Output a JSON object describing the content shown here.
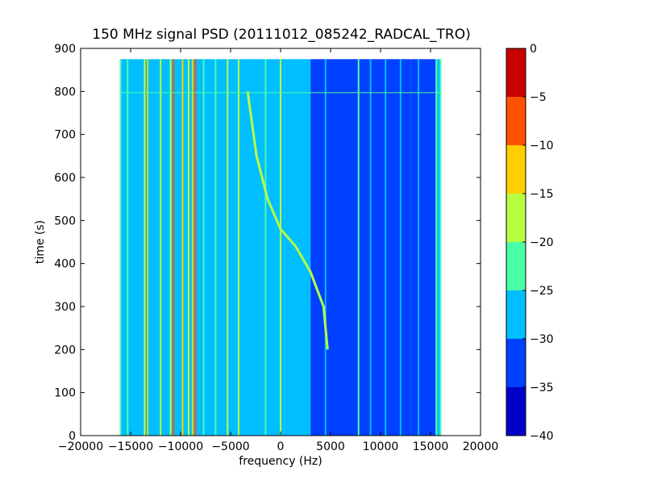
{
  "chart_data": {
    "type": "heatmap",
    "title": "150 MHz signal PSD (20111012_085242_RADCAL_TRO)",
    "xlabel": "frequency (Hz)",
    "ylabel": "time (s)",
    "xlim": [
      -20000,
      20000
    ],
    "ylim": [
      0,
      900
    ],
    "xticks": [
      -20000,
      -15000,
      -10000,
      -5000,
      0,
      5000,
      10000,
      15000,
      20000
    ],
    "xtick_labels": [
      "−20000",
      "−15000",
      "−10000",
      "−5000",
      "0",
      "5000",
      "10000",
      "15000",
      "20000"
    ],
    "yticks": [
      0,
      100,
      200,
      300,
      400,
      500,
      600,
      700,
      800,
      900
    ],
    "ytick_labels": [
      "0",
      "100",
      "200",
      "300",
      "400",
      "500",
      "600",
      "700",
      "800",
      "900"
    ],
    "data_extent": {
      "x": [
        -16000,
        16000
      ],
      "y": [
        0,
        875
      ]
    },
    "colorbar": {
      "levels": [
        -40,
        -35,
        -30,
        -25,
        -20,
        -15,
        -10,
        -5,
        0
      ],
      "tick_labels": [
        "−40",
        "−35",
        "−30",
        "−25",
        "−20",
        "−15",
        "−10",
        "−5",
        "0"
      ],
      "colors": [
        "#0000c8",
        "#0040ff",
        "#00beff",
        "#49fea7",
        "#b6ff43",
        "#ffce00",
        "#ff5200",
        "#c80000"
      ]
    },
    "background_regions": [
      {
        "x": [
          -16000,
          3000
        ],
        "level": -27.5
      },
      {
        "x": [
          3000,
          13000
        ],
        "level": -32.5
      },
      {
        "x": [
          13000,
          15500
        ],
        "level": -32.5
      },
      {
        "x": [
          15500,
          16000
        ],
        "level": -27.5
      }
    ],
    "vertical_lines": [
      {
        "x": -16000,
        "level": -22.5
      },
      {
        "x": -15300,
        "level": -22.5
      },
      {
        "x": -13600,
        "level": -17.5
      },
      {
        "x": -13300,
        "level": -12.5
      },
      {
        "x": -12000,
        "level": -17.5
      },
      {
        "x": -11000,
        "level": -17.5
      },
      {
        "x": -10700,
        "level": -7.5
      },
      {
        "x": -9800,
        "level": -12.5
      },
      {
        "x": -9200,
        "level": -17.5
      },
      {
        "x": -8800,
        "level": -12.5
      },
      {
        "x": -8500,
        "level": -7.5
      },
      {
        "x": -7700,
        "level": -22.5
      },
      {
        "x": -6500,
        "level": -22.5
      },
      {
        "x": -5300,
        "level": -17.5
      },
      {
        "x": -4200,
        "level": -17.5
      },
      {
        "x": -1500,
        "level": -22.5
      },
      {
        "x": 0,
        "level": -17.5
      },
      {
        "x": 4500,
        "level": -27.5
      },
      {
        "x": 7800,
        "level": -22.5
      },
      {
        "x": 9000,
        "level": -27.5
      },
      {
        "x": 10500,
        "level": -27.5
      },
      {
        "x": 12000,
        "level": -27.5
      },
      {
        "x": 13800,
        "level": -27.5
      },
      {
        "x": 15600,
        "level": -22.5
      },
      {
        "x": 16000,
        "level": -22.5
      }
    ],
    "doppler_track": {
      "level": -17.5,
      "points": [
        [
          4700,
          200
        ],
        [
          4300,
          300
        ],
        [
          3000,
          380
        ],
        [
          1500,
          440
        ],
        [
          0,
          480
        ],
        [
          -1300,
          550
        ],
        [
          -2400,
          650
        ],
        [
          -3000,
          750
        ],
        [
          -3300,
          800
        ]
      ]
    },
    "horizontal_line": {
      "y": 797,
      "level": -22.5
    }
  }
}
